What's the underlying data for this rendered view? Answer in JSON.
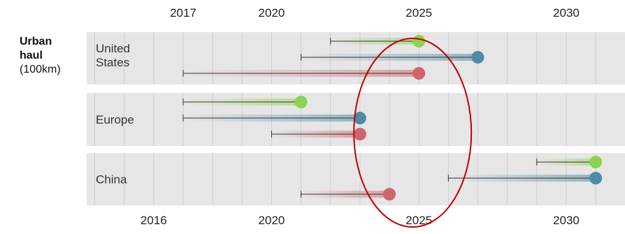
{
  "chart_data": {
    "type": "dumbbell",
    "row_label": {
      "line1": "Urban",
      "line2": "haul",
      "line3": "(100km)"
    },
    "top_axis": {
      "ticks": [
        2017,
        2020,
        2025,
        2030
      ]
    },
    "bottom_axis": {
      "ticks": [
        2016,
        2020,
        2025,
        2030
      ]
    },
    "xlim": [
      2013,
      2031
    ],
    "grid": true,
    "colors": {
      "green": "#8fd150",
      "blue": "#4f8aa6",
      "red": "#d0646e",
      "panel": "#e6e6e6",
      "annotation": "#c00000"
    },
    "groups": [
      {
        "name": "United States",
        "series": [
          {
            "color": "green",
            "start": 2022,
            "end": 2025
          },
          {
            "color": "blue",
            "start": 2021,
            "end": 2027
          },
          {
            "color": "red",
            "start": 2017,
            "end": 2025
          }
        ]
      },
      {
        "name": "Europe",
        "series": [
          {
            "color": "green",
            "start": 2017,
            "end": 2021
          },
          {
            "color": "blue",
            "start": 2017,
            "end": 2023
          },
          {
            "color": "red",
            "start": 2020,
            "end": 2023
          }
        ]
      },
      {
        "name": "China",
        "series": [
          {
            "color": "green",
            "start": 2029,
            "end": 2031
          },
          {
            "color": "blue",
            "start": 2026,
            "end": 2031
          },
          {
            "color": "red",
            "start": 2021,
            "end": 2024
          }
        ]
      }
    ],
    "annotation": {
      "shape": "ellipse",
      "around_year": 2025
    }
  }
}
